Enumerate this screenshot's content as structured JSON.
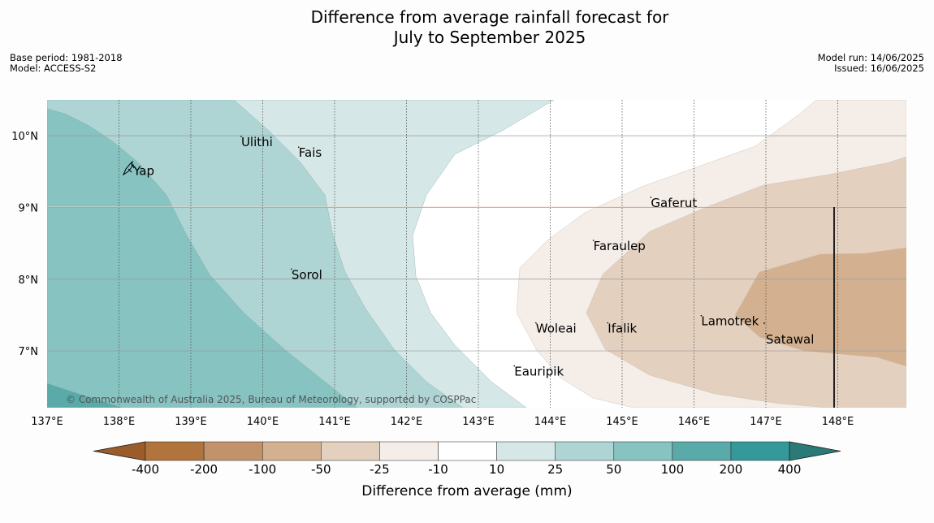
{
  "title": {
    "line1": "Difference from average rainfall forecast for",
    "line2": "July to September 2025"
  },
  "meta": {
    "base_period": "Base period: 1981-2018",
    "model": "Model: ACCESS-S2",
    "model_run": "Model run: 14/06/2025",
    "issued": "Issued: 16/06/2025"
  },
  "map": {
    "x_ticks": [
      {
        "lon": 137,
        "label": "137°E"
      },
      {
        "lon": 138,
        "label": "138°E"
      },
      {
        "lon": 139,
        "label": "139°E"
      },
      {
        "lon": 140,
        "label": "140°E"
      },
      {
        "lon": 141,
        "label": "141°E"
      },
      {
        "lon": 142,
        "label": "142°E"
      },
      {
        "lon": 143,
        "label": "143°E"
      },
      {
        "lon": 144,
        "label": "144°E"
      },
      {
        "lon": 145,
        "label": "145°E"
      },
      {
        "lon": 146,
        "label": "146°E"
      },
      {
        "lon": 147,
        "label": "147°E"
      },
      {
        "lon": 148,
        "label": "148°E"
      }
    ],
    "y_ticks": [
      {
        "lat": 10,
        "label": "10°N"
      },
      {
        "lat": 9,
        "label": "9°N"
      },
      {
        "lat": 8,
        "label": "8°N"
      },
      {
        "lat": 7,
        "label": "7°N"
      }
    ],
    "places": [
      {
        "name": "Yap",
        "lon": 138.2,
        "lat": 9.5
      },
      {
        "name": "Ulithi",
        "lon": 139.7,
        "lat": 9.9
      },
      {
        "name": "Fais",
        "lon": 140.5,
        "lat": 9.75
      },
      {
        "name": "Gaferut",
        "lon": 145.4,
        "lat": 9.05
      },
      {
        "name": "Faraulep",
        "lon": 144.6,
        "lat": 8.45
      },
      {
        "name": "Sorol",
        "lon": 140.4,
        "lat": 8.05
      },
      {
        "name": "Lamotrek",
        "lon": 146.1,
        "lat": 7.4
      },
      {
        "name": "Woleai",
        "lon": 143.8,
        "lat": 7.3
      },
      {
        "name": "Ifalik",
        "lon": 144.8,
        "lat": 7.3
      },
      {
        "name": "Satawal",
        "lon": 147.0,
        "lat": 7.15
      },
      {
        "name": "Eauripik",
        "lon": 143.5,
        "lat": 6.7
      }
    ],
    "copyright": "© Commonwealth of Australia 2025, Bureau of Meteorology, supported by COSPPac",
    "colors": {
      "ten_to_25": "#d5e8e7",
      "twentyfive_to_50": "#aed5d4",
      "fifty_to_100": "#86c3c1",
      "hundred_to_200": "#59aaa8",
      "minus25_to_minus10": "#f4ede8",
      "minus50_to_minus25": "#e3d0bf",
      "minus100_to_minus50": "#d3b190",
      "neutral": "#ffffff"
    }
  },
  "colorbar": {
    "bins": [
      {
        "color": "#9b5c2c"
      },
      {
        "color": "#b0743c"
      },
      {
        "color": "#c2936a"
      },
      {
        "color": "#d3b190"
      },
      {
        "color": "#e3d0bf"
      },
      {
        "color": "#f4ede8"
      },
      {
        "color": "#ffffff"
      },
      {
        "color": "#d5e8e7"
      },
      {
        "color": "#aed5d4"
      },
      {
        "color": "#86c3c1"
      },
      {
        "color": "#59aaa8"
      },
      {
        "color": "#35999a"
      },
      {
        "color": "#2c7a78"
      }
    ],
    "tick_labels": [
      "-400",
      "-200",
      "-100",
      "-50",
      "-25",
      "-10",
      "10",
      "25",
      "50",
      "100",
      "200",
      "400"
    ],
    "label": "Difference from average (mm)"
  }
}
